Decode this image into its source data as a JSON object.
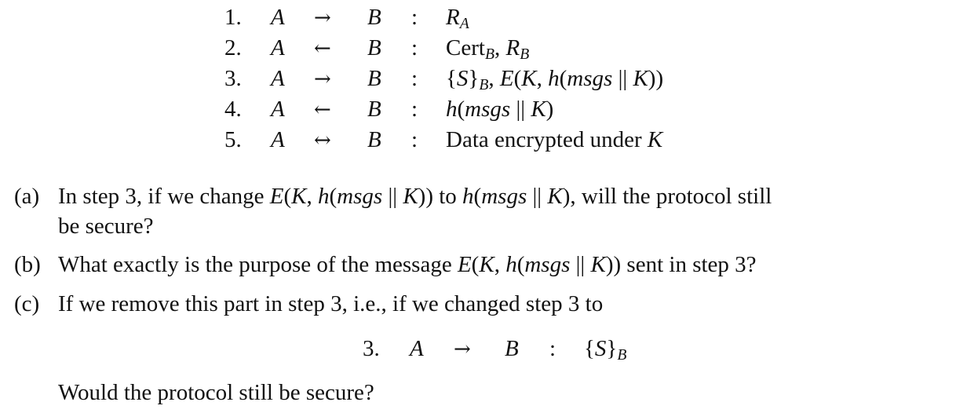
{
  "protocol": {
    "rows": [
      {
        "num": "1.",
        "a": "A",
        "arrow": "→",
        "b": "B",
        "colon": ":",
        "msg": "R_A"
      },
      {
        "num": "2.",
        "a": "A",
        "arrow": "←",
        "b": "B",
        "colon": ":",
        "msg": "Cert_B, R_B"
      },
      {
        "num": "3.",
        "a": "A",
        "arrow": "→",
        "b": "B",
        "colon": ":",
        "msg": "{S}_B, E(K, h(msgs || K))"
      },
      {
        "num": "4.",
        "a": "A",
        "arrow": "←",
        "b": "B",
        "colon": ":",
        "msg": "h(msgs || K)"
      },
      {
        "num": "5.",
        "a": "A",
        "arrow": "↔",
        "b": "B",
        "colon": ":",
        "msg": "Data encrypted under K"
      }
    ]
  },
  "questions": {
    "a": {
      "label": "(a)",
      "text_line1_pre": "In step 3, if we change",
      "text_line1_mid": "to",
      "text_line1_post": ", will the protocol still",
      "text_line2": "be secure?"
    },
    "b": {
      "label": "(b)",
      "text_pre": "What exactly is the purpose of the message",
      "text_post": "sent in step 3?"
    },
    "c": {
      "label": "(c)",
      "text": "If we remove this part in step 3, i.e., if we changed step 3 to",
      "display": {
        "num": "3.",
        "a": "A",
        "arrow": "→",
        "b": "B",
        "colon": ":",
        "msg": "{S}_B"
      },
      "closing": "Would the protocol still be secure?"
    }
  }
}
